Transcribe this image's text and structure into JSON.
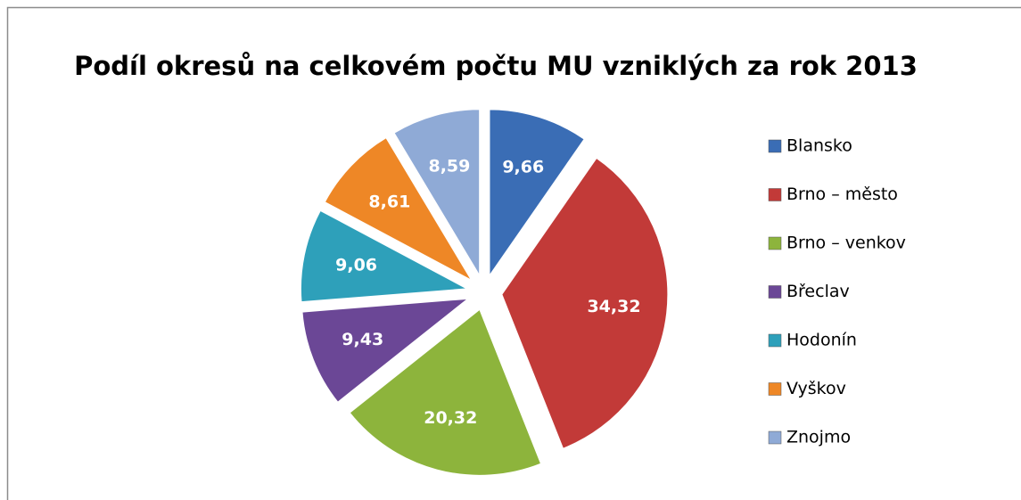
{
  "chart_data": {
    "type": "pie",
    "title": "Podíl okresů na celkovém počtu MU vzniklých za rok 2013",
    "categories": [
      "Blansko",
      "Brno – město",
      "Brno – venkov",
      "Břeclav",
      "Hodonín",
      "Vyškov",
      "Znojmo"
    ],
    "values": [
      9.66,
      34.32,
      20.32,
      9.43,
      9.06,
      8.61,
      8.59
    ],
    "value_labels": [
      "9,66",
      "34,32",
      "20,32",
      "9,43",
      "9,06",
      "8,61",
      "8,59"
    ],
    "colors": [
      "#3a6db5",
      "#c23a38",
      "#8db43c",
      "#6b4796",
      "#2ea0ba",
      "#ee8726",
      "#8faad6"
    ],
    "legend": "right"
  }
}
